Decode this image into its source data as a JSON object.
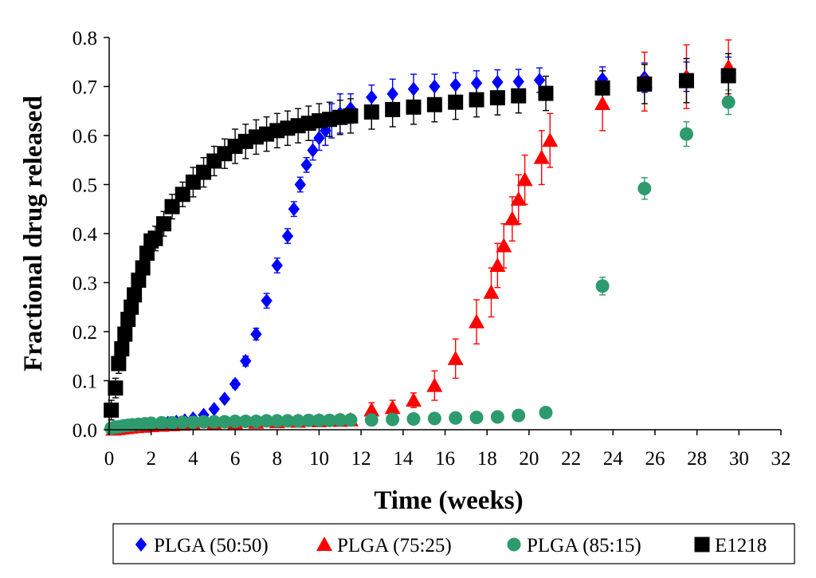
{
  "chart_data": {
    "type": "scatter",
    "title": "",
    "xlabel": "Time (weeks)",
    "ylabel": "Fractional drug released",
    "xlim": [
      0,
      32
    ],
    "ylim": [
      0,
      0.8
    ],
    "xticks": [
      0,
      2,
      4,
      6,
      8,
      10,
      12,
      14,
      16,
      18,
      20,
      22,
      24,
      26,
      28,
      30,
      32
    ],
    "yticks": [
      0.0,
      0.1,
      0.2,
      0.3,
      0.4,
      0.5,
      0.6,
      0.7,
      0.8
    ],
    "xtick_labels": [
      "0",
      "2",
      "4",
      "6",
      "8",
      "10",
      "12",
      "14",
      "16",
      "18",
      "20",
      "22",
      "24",
      "26",
      "28",
      "30",
      "32"
    ],
    "ytick_labels": [
      "0.0",
      "0.1",
      "0.2",
      "0.3",
      "0.4",
      "0.5",
      "0.6",
      "0.7",
      "0.8"
    ],
    "grid": false,
    "legend_position": "bottom",
    "series": [
      {
        "name": "PLGA (50:50)",
        "marker": "diamond",
        "color": "#0000ff",
        "x": [
          0.2,
          0.4,
          0.6,
          0.8,
          1.0,
          1.3,
          1.6,
          2.0,
          2.4,
          2.8,
          3.2,
          3.6,
          4.0,
          4.5,
          5.0,
          5.5,
          6.0,
          6.5,
          7.0,
          7.5,
          8.0,
          8.5,
          8.8,
          9.1,
          9.4,
          9.7,
          10.0,
          10.3,
          10.6,
          11.0,
          11.5,
          12.5,
          13.5,
          14.5,
          15.5,
          16.5,
          17.5,
          18.5,
          19.5,
          20.5,
          23.5,
          25.5,
          27.5,
          29.5
        ],
        "y": [
          0.003,
          0.005,
          0.006,
          0.007,
          0.008,
          0.009,
          0.01,
          0.011,
          0.012,
          0.014,
          0.016,
          0.019,
          0.023,
          0.03,
          0.042,
          0.063,
          0.093,
          0.14,
          0.195,
          0.263,
          0.335,
          0.395,
          0.45,
          0.5,
          0.54,
          0.57,
          0.595,
          0.61,
          0.63,
          0.645,
          0.655,
          0.678,
          0.685,
          0.695,
          0.7,
          0.703,
          0.707,
          0.709,
          0.71,
          0.713,
          0.715,
          0.718,
          0.72,
          0.72
        ],
        "err": [
          0,
          0,
          0,
          0,
          0,
          0,
          0,
          0,
          0,
          0,
          0,
          0,
          0,
          0,
          0,
          0,
          0.008,
          0.01,
          0.012,
          0.015,
          0.015,
          0.015,
          0.015,
          0.015,
          0.015,
          0.02,
          0.025,
          0.03,
          0.035,
          0.04,
          0.03,
          0.025,
          0.03,
          0.03,
          0.025,
          0.025,
          0.025,
          0.025,
          0.025,
          0.025,
          0.025,
          0.03,
          0.03,
          0.04
        ]
      },
      {
        "name": "PLGA (75:25)",
        "marker": "triangle",
        "color": "#ff0000",
        "x": [
          0.2,
          0.4,
          0.6,
          0.8,
          1.0,
          1.3,
          1.6,
          2.0,
          2.5,
          3.0,
          3.5,
          4.0,
          5.0,
          6.0,
          7.0,
          8.0,
          9.0,
          10.0,
          11.0,
          11.5,
          12.5,
          13.5,
          14.5,
          15.5,
          16.5,
          17.5,
          18.2,
          18.5,
          18.8,
          19.2,
          19.5,
          19.8,
          20.6,
          21.0,
          23.5,
          25.5,
          27.5,
          29.5
        ],
        "y": [
          0.001,
          0.002,
          0.003,
          0.004,
          0.005,
          0.006,
          0.007,
          0.008,
          0.009,
          0.01,
          0.011,
          0.012,
          0.013,
          0.014,
          0.015,
          0.016,
          0.017,
          0.018,
          0.019,
          0.02,
          0.04,
          0.045,
          0.06,
          0.09,
          0.145,
          0.22,
          0.28,
          0.335,
          0.375,
          0.43,
          0.47,
          0.51,
          0.555,
          0.59,
          0.665,
          0.71,
          0.72,
          0.74
        ],
        "err": [
          0,
          0,
          0,
          0,
          0,
          0,
          0,
          0,
          0,
          0,
          0,
          0,
          0,
          0,
          0,
          0,
          0,
          0,
          0,
          0,
          0.015,
          0.015,
          0.015,
          0.03,
          0.04,
          0.045,
          0.05,
          0.045,
          0.045,
          0.045,
          0.05,
          0.05,
          0.055,
          0.055,
          0.055,
          0.06,
          0.065,
          0.055
        ]
      },
      {
        "name": "PLGA (85:15)",
        "marker": "circle",
        "color": "#2e9b6e",
        "x": [
          0.1,
          0.3,
          0.5,
          0.7,
          0.9,
          1.1,
          1.4,
          1.7,
          2.0,
          2.5,
          3.0,
          3.5,
          4.0,
          4.5,
          5.0,
          5.5,
          6.0,
          6.5,
          7.0,
          7.5,
          8.0,
          8.5,
          9.0,
          9.5,
          10.0,
          10.5,
          11.0,
          11.5,
          12.5,
          13.5,
          14.5,
          15.5,
          16.5,
          17.5,
          18.5,
          19.5,
          20.8,
          23.5,
          25.5,
          27.5,
          29.5
        ],
        "y": [
          0.003,
          0.005,
          0.006,
          0.008,
          0.009,
          0.01,
          0.011,
          0.012,
          0.013,
          0.014,
          0.014,
          0.015,
          0.015,
          0.016,
          0.016,
          0.016,
          0.017,
          0.017,
          0.017,
          0.018,
          0.018,
          0.018,
          0.018,
          0.019,
          0.019,
          0.019,
          0.02,
          0.02,
          0.02,
          0.021,
          0.022,
          0.023,
          0.024,
          0.025,
          0.026,
          0.029,
          0.035,
          0.293,
          0.492,
          0.603,
          0.668
        ],
        "err": [
          0,
          0,
          0,
          0,
          0,
          0,
          0,
          0,
          0,
          0,
          0,
          0,
          0,
          0,
          0,
          0,
          0,
          0,
          0,
          0,
          0,
          0,
          0,
          0,
          0,
          0,
          0,
          0,
          0,
          0,
          0,
          0,
          0,
          0,
          0,
          0,
          0,
          0.018,
          0.022,
          0.025,
          0.025
        ]
      },
      {
        "name": "E1218",
        "marker": "square",
        "color": "#000000",
        "x": [
          0.1,
          0.3,
          0.45,
          0.6,
          0.75,
          0.9,
          1.05,
          1.2,
          1.4,
          1.6,
          1.8,
          2.0,
          2.2,
          2.6,
          3.0,
          3.5,
          4.0,
          4.5,
          5.0,
          5.5,
          6.0,
          6.5,
          7.0,
          7.5,
          8.0,
          8.5,
          9.0,
          9.5,
          10.0,
          10.5,
          11.0,
          11.5,
          12.5,
          13.5,
          14.5,
          15.5,
          16.5,
          17.5,
          18.5,
          19.5,
          20.8,
          23.5,
          25.5,
          27.5,
          29.5
        ],
        "y": [
          0.04,
          0.085,
          0.135,
          0.165,
          0.195,
          0.225,
          0.25,
          0.275,
          0.305,
          0.33,
          0.36,
          0.385,
          0.39,
          0.42,
          0.455,
          0.48,
          0.505,
          0.525,
          0.548,
          0.563,
          0.578,
          0.588,
          0.597,
          0.603,
          0.61,
          0.615,
          0.62,
          0.625,
          0.63,
          0.633,
          0.637,
          0.64,
          0.648,
          0.653,
          0.658,
          0.663,
          0.668,
          0.673,
          0.677,
          0.681,
          0.686,
          0.697,
          0.705,
          0.712,
          0.722
        ],
        "err": [
          0.02,
          0.02,
          0.02,
          0.02,
          0.02,
          0.02,
          0.02,
          0.02,
          0.02,
          0.02,
          0.02,
          0.02,
          0.025,
          0.025,
          0.025,
          0.025,
          0.03,
          0.03,
          0.03,
          0.03,
          0.035,
          0.035,
          0.035,
          0.035,
          0.035,
          0.035,
          0.035,
          0.035,
          0.035,
          0.035,
          0.035,
          0.035,
          0.035,
          0.035,
          0.035,
          0.035,
          0.035,
          0.035,
          0.035,
          0.035,
          0.035,
          0.035,
          0.04,
          0.045,
          0.045
        ]
      }
    ]
  }
}
